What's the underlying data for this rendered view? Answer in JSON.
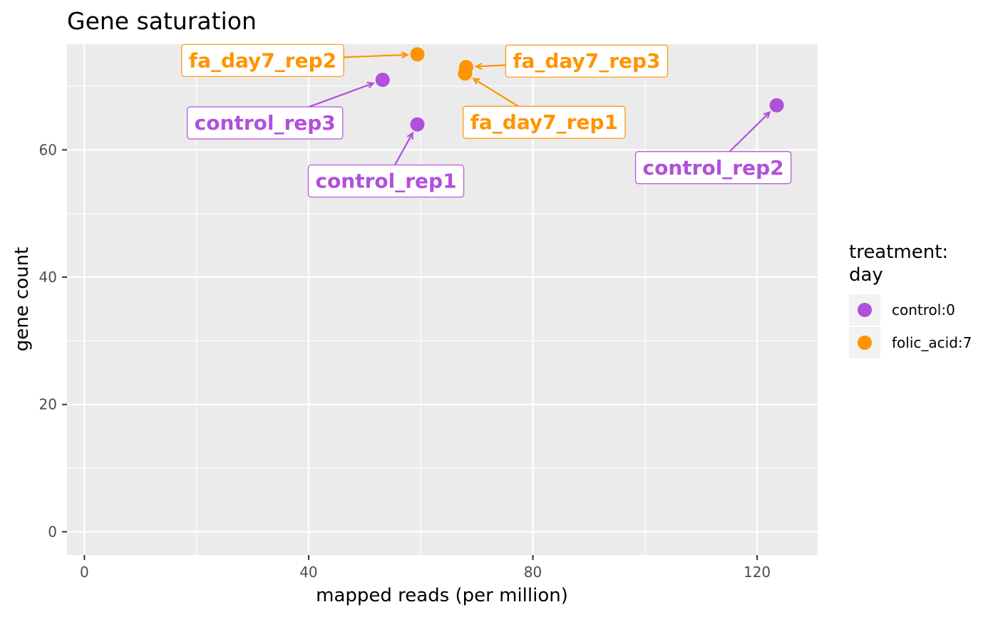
{
  "chart_data": {
    "type": "scatter",
    "title": "Gene saturation",
    "xlabel": "mapped reads (per million)",
    "ylabel": "gene count",
    "xlim": [
      -3.1,
      130.8
    ],
    "ylim": [
      -3.65,
      76.6
    ],
    "x_ticks": [
      0,
      40,
      80,
      120
    ],
    "y_ticks": [
      0,
      20,
      40,
      60
    ],
    "x_minor_ticks": [
      20,
      60,
      100
    ],
    "y_minor_ticks": [
      10,
      30,
      50,
      70
    ],
    "grid": true,
    "legend": {
      "title_lines": [
        "treatment:",
        "day"
      ],
      "position": "right",
      "entries": [
        {
          "label": "control:0",
          "color": "#b150dc"
        },
        {
          "label": "folic_acid:7",
          "color": "#ff9400"
        }
      ]
    },
    "series": [
      {
        "name": "control:0",
        "color": "#b150dc",
        "points": [
          {
            "x": 59.4,
            "y": 64,
            "label": "control_rep1"
          },
          {
            "x": 123.5,
            "y": 67,
            "label": "control_rep2"
          },
          {
            "x": 53.2,
            "y": 71,
            "label": "control_rep3"
          }
        ]
      },
      {
        "name": "folic_acid:7",
        "color": "#ff9400",
        "points": [
          {
            "x": 67.9,
            "y": 72,
            "label": "fa_day7_rep1"
          },
          {
            "x": 59.4,
            "y": 75,
            "label": "fa_day7_rep2"
          },
          {
            "x": 68.1,
            "y": 73,
            "label": "fa_day7_rep3"
          }
        ]
      }
    ]
  }
}
